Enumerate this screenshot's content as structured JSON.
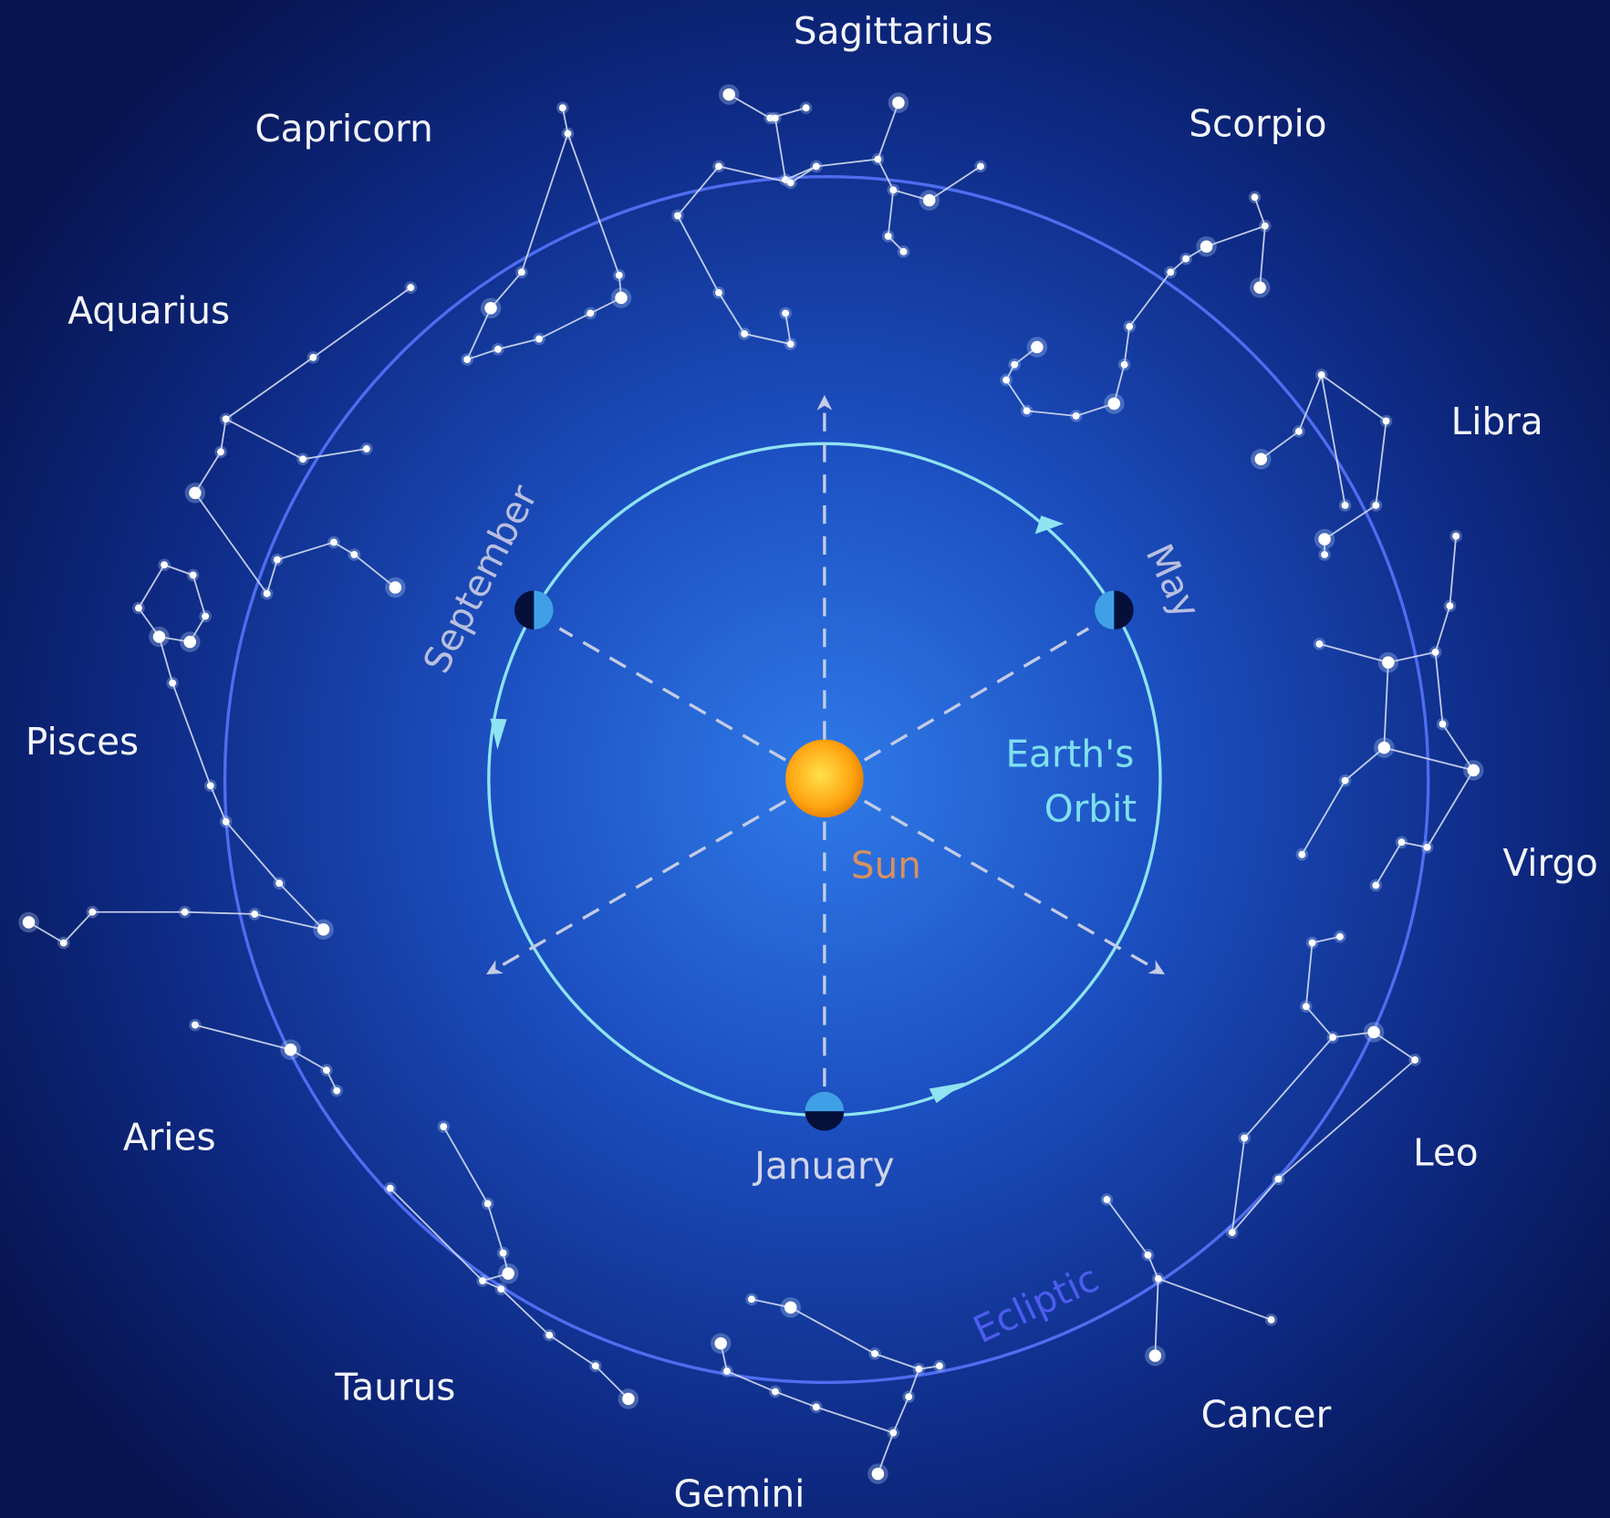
{
  "constellations": [
    "Sagittarius",
    "Capricorn",
    "Scorpio",
    "Aquarius",
    "Libra",
    "Pisces",
    "Virgo",
    "Aries",
    "Leo",
    "Taurus",
    "Cancer",
    "Gemini"
  ],
  "months": [
    "September",
    "May",
    "January"
  ],
  "orbit_label": [
    "Earth's",
    "Orbit"
  ],
  "sun_label": "Sun",
  "ecliptic_label": "Ecliptic"
}
